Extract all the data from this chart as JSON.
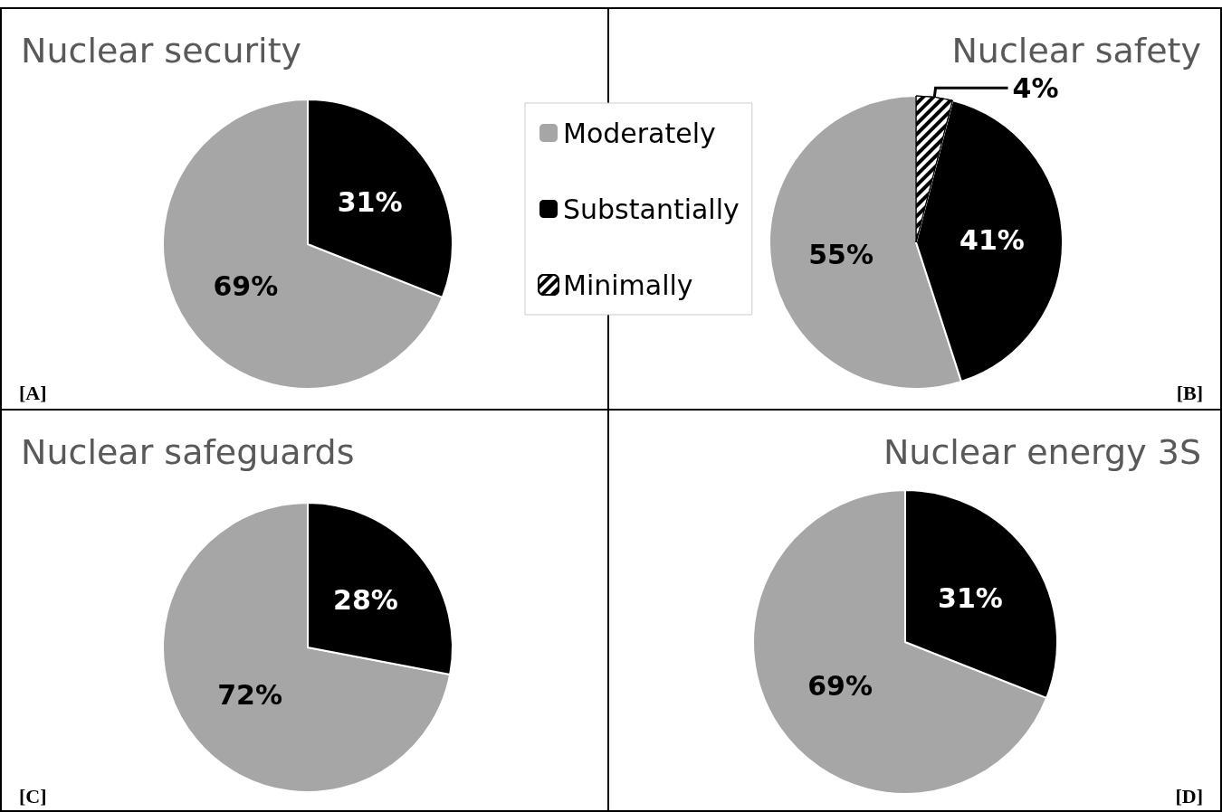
{
  "chart_data": [
    {
      "type": "pie",
      "title": "Nuclear security",
      "categories": [
        null,
        null
      ],
      "values": [
        69,
        31
      ],
      "colors": [
        "#a6a6a6",
        "#000000"
      ],
      "value_labels": [
        "69%",
        "31%"
      ],
      "annotations": [
        "[A]"
      ]
    },
    {
      "type": "pie",
      "title": "Nuclear safety",
      "categories": [
        "Moderately",
        "Substantially",
        "Minimally"
      ],
      "values": [
        55,
        41,
        4
      ],
      "colors": [
        "#a6a6a6",
        "#000000",
        "#ffffff"
      ],
      "value_labels": [
        "55%",
        "41%",
        "4%"
      ],
      "annotations": [
        "[B]"
      ],
      "legend": "left"
    },
    {
      "type": "pie",
      "title": "Nuclear safeguards",
      "categories": [
        null,
        null
      ],
      "values": [
        72,
        28
      ],
      "colors": [
        "#a6a6a6",
        "#000000"
      ],
      "value_labels": [
        "72%",
        "28%"
      ],
      "annotations": [
        "[C]"
      ]
    },
    {
      "type": "pie",
      "title": "Nuclear energy 3S",
      "categories": [
        null,
        null
      ],
      "values": [
        69,
        31
      ],
      "colors": [
        "#a6a6a6",
        "#000000"
      ],
      "value_labels": [
        "69%",
        "31%"
      ],
      "annotations": [
        "[D]"
      ]
    }
  ]
}
